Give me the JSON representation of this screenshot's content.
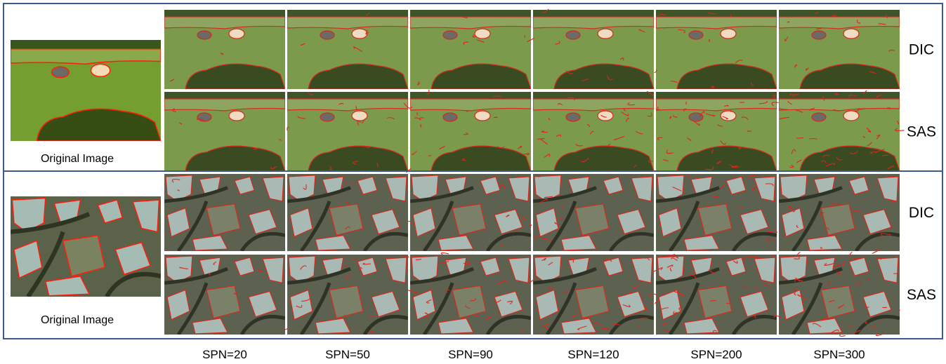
{
  "panels": [
    {
      "caption": "Original Image",
      "rows": [
        "DIC",
        "SAS"
      ]
    },
    {
      "caption": "Original Image",
      "rows": [
        "DIC",
        "SAS"
      ]
    }
  ],
  "columns": [
    "SPN=20",
    "SPN=50",
    "SPN=90",
    "SPN=120",
    "SPN=200",
    "SPN=300"
  ]
}
